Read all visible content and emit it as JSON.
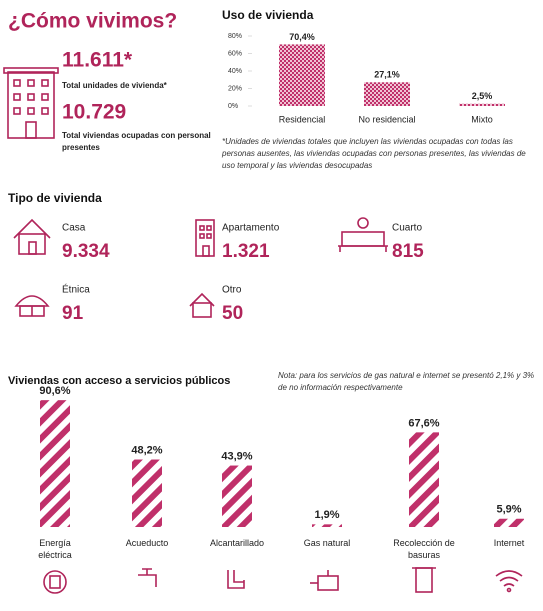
{
  "title": "¿Cómo vivimos?",
  "summary": {
    "total_value": "11.611*",
    "total_label": "Total unidades de vivienda*",
    "occupied_value": "10.729",
    "occupied_label": "Total viviendas ocupadas con personal presentes"
  },
  "uso": {
    "type": "bar",
    "title": "Uso de vivienda",
    "categories": [
      "Residencial",
      "No residencial",
      "Mixto"
    ],
    "values": [
      70.4,
      27.1,
      2.5
    ],
    "value_labels": [
      "70,4%",
      "27,1%",
      "2,5%"
    ],
    "ylim": [
      0,
      80
    ],
    "yticks": [
      {
        "value": 0,
        "label": "0%"
      },
      {
        "value": 20,
        "label": "20%"
      },
      {
        "value": 40,
        "label": "40%"
      },
      {
        "value": 60,
        "label": "60%"
      },
      {
        "value": 80,
        "label": "80%"
      }
    ],
    "color": "#c0306a",
    "note": "*Unidades de viviendas totales que incluyen las viviendas ocupadas con todas las personas ausentes, las viviendas ocupadas con personas presentes, las viviendas de uso temporal y las viviendas desocupadas"
  },
  "tipo": {
    "title": "Tipo de vivienda",
    "items": [
      {
        "label": "Casa",
        "value": "9.334"
      },
      {
        "label": "Apartamento",
        "value": "1.321"
      },
      {
        "label": "Cuarto",
        "value": "815"
      },
      {
        "label": "Étnica",
        "value": "91"
      },
      {
        "label": "Otro",
        "value": "50"
      }
    ]
  },
  "servicios": {
    "type": "bar",
    "title": "Viviendas con acceso a servicios públicos",
    "note": "Nota: para los servicios de gas natural e internet se presentó 2,1% y 3% de no información respectivamente",
    "categories": [
      "Energía eléctrica",
      "Acueducto",
      "Alcantarillado",
      "Gas natural",
      "Recolección de basuras",
      "Internet"
    ],
    "values": [
      90.6,
      48.2,
      43.9,
      1.9,
      67.6,
      5.9
    ],
    "value_labels": [
      "90,6%",
      "48,2%",
      "43,9%",
      "1,9%",
      "67,6%",
      "5,9%"
    ],
    "ylim": [
      0,
      100
    ],
    "color": "#c0306a"
  }
}
